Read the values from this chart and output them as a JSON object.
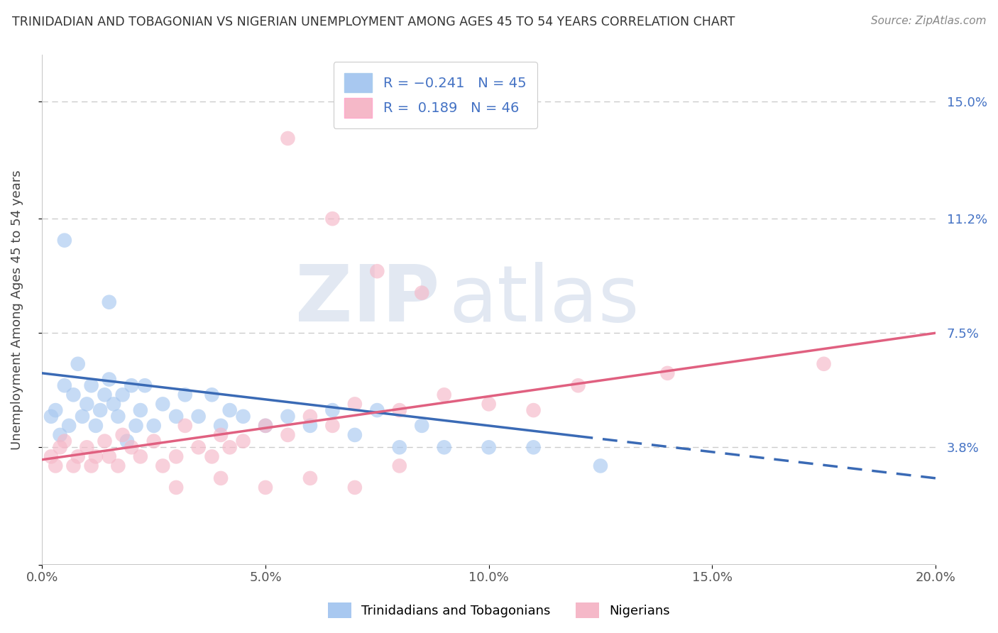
{
  "title": "TRINIDADIAN AND TOBAGONIAN VS NIGERIAN UNEMPLOYMENT AMONG AGES 45 TO 54 YEARS CORRELATION CHART",
  "source": "Source: ZipAtlas.com",
  "ylabel": "Unemployment Among Ages 45 to 54 years",
  "xmin": 0.0,
  "xmax": 20.0,
  "ymin": 0.0,
  "ymax": 16.5,
  "yticks": [
    0.0,
    3.8,
    7.5,
    11.2,
    15.0
  ],
  "ytick_labels": [
    "",
    "3.8%",
    "7.5%",
    "11.2%",
    "15.0%"
  ],
  "xticks": [
    0.0,
    5.0,
    10.0,
    15.0,
    20.0
  ],
  "xtick_labels": [
    "0.0%",
    "5.0%",
    "10.0%",
    "15.0%",
    "20.0%"
  ],
  "blue_R": -0.241,
  "blue_N": 45,
  "pink_R": 0.189,
  "pink_N": 46,
  "blue_color": "#a8c8f0",
  "pink_color": "#f5b8c8",
  "blue_line_color": "#3a6ab5",
  "pink_line_color": "#e06080",
  "legend_label_blue": "Trinidadians and Tobagonians",
  "legend_label_pink": "Nigerians",
  "blue_line_y0": 6.2,
  "blue_line_y20": 2.8,
  "blue_dash_start_x": 12.0,
  "pink_line_y0": 3.4,
  "pink_line_y20": 7.5,
  "blue_scatter_x": [
    0.2,
    0.3,
    0.4,
    0.5,
    0.6,
    0.7,
    0.8,
    0.9,
    1.0,
    1.1,
    1.2,
    1.3,
    1.4,
    1.5,
    1.6,
    1.7,
    1.8,
    1.9,
    2.0,
    2.1,
    2.2,
    2.3,
    2.5,
    2.7,
    3.0,
    3.2,
    3.5,
    3.8,
    4.0,
    4.2,
    4.5,
    5.0,
    5.5,
    6.0,
    6.5,
    7.0,
    7.5,
    8.0,
    8.5,
    9.0,
    10.0,
    11.0,
    12.5,
    0.5,
    1.5
  ],
  "blue_scatter_y": [
    4.8,
    5.0,
    4.2,
    5.8,
    4.5,
    5.5,
    6.5,
    4.8,
    5.2,
    5.8,
    4.5,
    5.0,
    5.5,
    6.0,
    5.2,
    4.8,
    5.5,
    4.0,
    5.8,
    4.5,
    5.0,
    5.8,
    4.5,
    5.2,
    4.8,
    5.5,
    4.8,
    5.5,
    4.5,
    5.0,
    4.8,
    4.5,
    4.8,
    4.5,
    5.0,
    4.2,
    5.0,
    3.8,
    4.5,
    3.8,
    3.8,
    3.8,
    3.2,
    10.5,
    8.5
  ],
  "pink_scatter_x": [
    0.2,
    0.3,
    0.4,
    0.5,
    0.7,
    0.8,
    1.0,
    1.1,
    1.2,
    1.4,
    1.5,
    1.7,
    1.8,
    2.0,
    2.2,
    2.5,
    2.7,
    3.0,
    3.2,
    3.5,
    3.8,
    4.0,
    4.2,
    4.5,
    5.0,
    5.5,
    6.0,
    6.5,
    7.0,
    8.0,
    9.0,
    10.0,
    11.0,
    12.0,
    14.0,
    17.5,
    5.5,
    6.5,
    7.5,
    8.5,
    3.0,
    4.0,
    5.0,
    6.0,
    7.0,
    8.0
  ],
  "pink_scatter_y": [
    3.5,
    3.2,
    3.8,
    4.0,
    3.2,
    3.5,
    3.8,
    3.2,
    3.5,
    4.0,
    3.5,
    3.2,
    4.2,
    3.8,
    3.5,
    4.0,
    3.2,
    3.5,
    4.5,
    3.8,
    3.5,
    4.2,
    3.8,
    4.0,
    4.5,
    4.2,
    4.8,
    4.5,
    5.2,
    5.0,
    5.5,
    5.2,
    5.0,
    5.8,
    6.2,
    6.5,
    13.8,
    11.2,
    9.5,
    8.8,
    2.5,
    2.8,
    2.5,
    2.8,
    2.5,
    3.2
  ]
}
